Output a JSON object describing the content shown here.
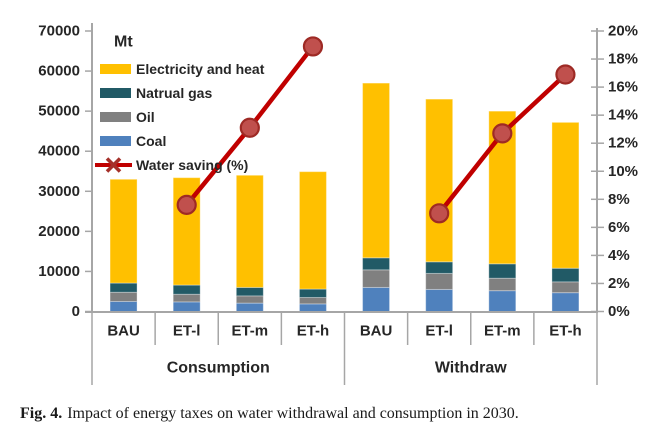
{
  "figure": {
    "caption": {
      "label": "Fig. 4.",
      "text": "Impact of energy taxes on water withdrawal and consumption in 2030."
    }
  },
  "chart_data": {
    "type": "bar",
    "subtype": "stacked-bars-with-percent-line",
    "unit_label": "Mt",
    "categories": [
      "BAU",
      "ET-l",
      "ET-m",
      "ET-h",
      "BAU",
      "ET-l",
      "ET-m",
      "ET-h"
    ],
    "groups": [
      {
        "label": "Consumption",
        "from": 0,
        "to": 3
      },
      {
        "label": "Withdraw",
        "from": 4,
        "to": 7
      }
    ],
    "left_axis": {
      "title": "Mt",
      "min": 0,
      "max": 70000,
      "step": 10000,
      "tick_labels": [
        "0",
        "10000",
        "20000",
        "30000",
        "40000",
        "50000",
        "60000",
        "70000"
      ]
    },
    "right_axis": {
      "min": 0,
      "max": 20,
      "step": 2,
      "tick_labels": [
        "0%",
        "2%",
        "4%",
        "6%",
        "8%",
        "10%",
        "12%",
        "14%",
        "16%",
        "18%",
        "20%"
      ]
    },
    "series": [
      {
        "name": "Coal",
        "type": "bar",
        "color": "#4F81BD",
        "values": [
          2500,
          2400,
          2100,
          1900,
          6000,
          5500,
          5200,
          4700
        ]
      },
      {
        "name": "Oil",
        "type": "bar",
        "color": "#808080",
        "values": [
          2300,
          1900,
          1800,
          1600,
          4400,
          4000,
          3100,
          2700
        ]
      },
      {
        "name": "Natrual gas",
        "type": "bar",
        "color": "#215A66",
        "values": [
          2300,
          2300,
          2100,
          2100,
          3000,
          2900,
          3600,
          3400
        ]
      },
      {
        "name": "Electricity and heat",
        "type": "bar",
        "color": "#FFC000",
        "values": [
          25900,
          26800,
          28000,
          29300,
          43600,
          40600,
          38100,
          36400
        ]
      },
      {
        "name": "Water saving (%)",
        "type": "line",
        "color": "#C00000",
        "marker_fill": "#C0504D",
        "marker_stroke": "#9E2A25",
        "values": [
          null,
          7.6,
          13.1,
          18.9,
          null,
          7.0,
          12.7,
          16.9
        ]
      }
    ],
    "stacked_totals": [
      33000,
      33400,
      34000,
      34900,
      57000,
      53000,
      50000,
      47200
    ],
    "legend": {
      "title": "Mt",
      "items": [
        {
          "label": "Electricity and heat",
          "swatch": "#FFC000",
          "kind": "bar"
        },
        {
          "label": "Natrual gas",
          "swatch": "#215A66",
          "kind": "bar"
        },
        {
          "label": "Oil",
          "swatch": "#808080",
          "kind": "bar"
        },
        {
          "label": "Coal",
          "swatch": "#4F81BD",
          "kind": "bar"
        },
        {
          "label": "Water saving (%)",
          "swatch": "#C00000",
          "kind": "line"
        }
      ],
      "position": "top-left-inside"
    },
    "axis_color": "#A6A6A6",
    "grid": "off"
  }
}
